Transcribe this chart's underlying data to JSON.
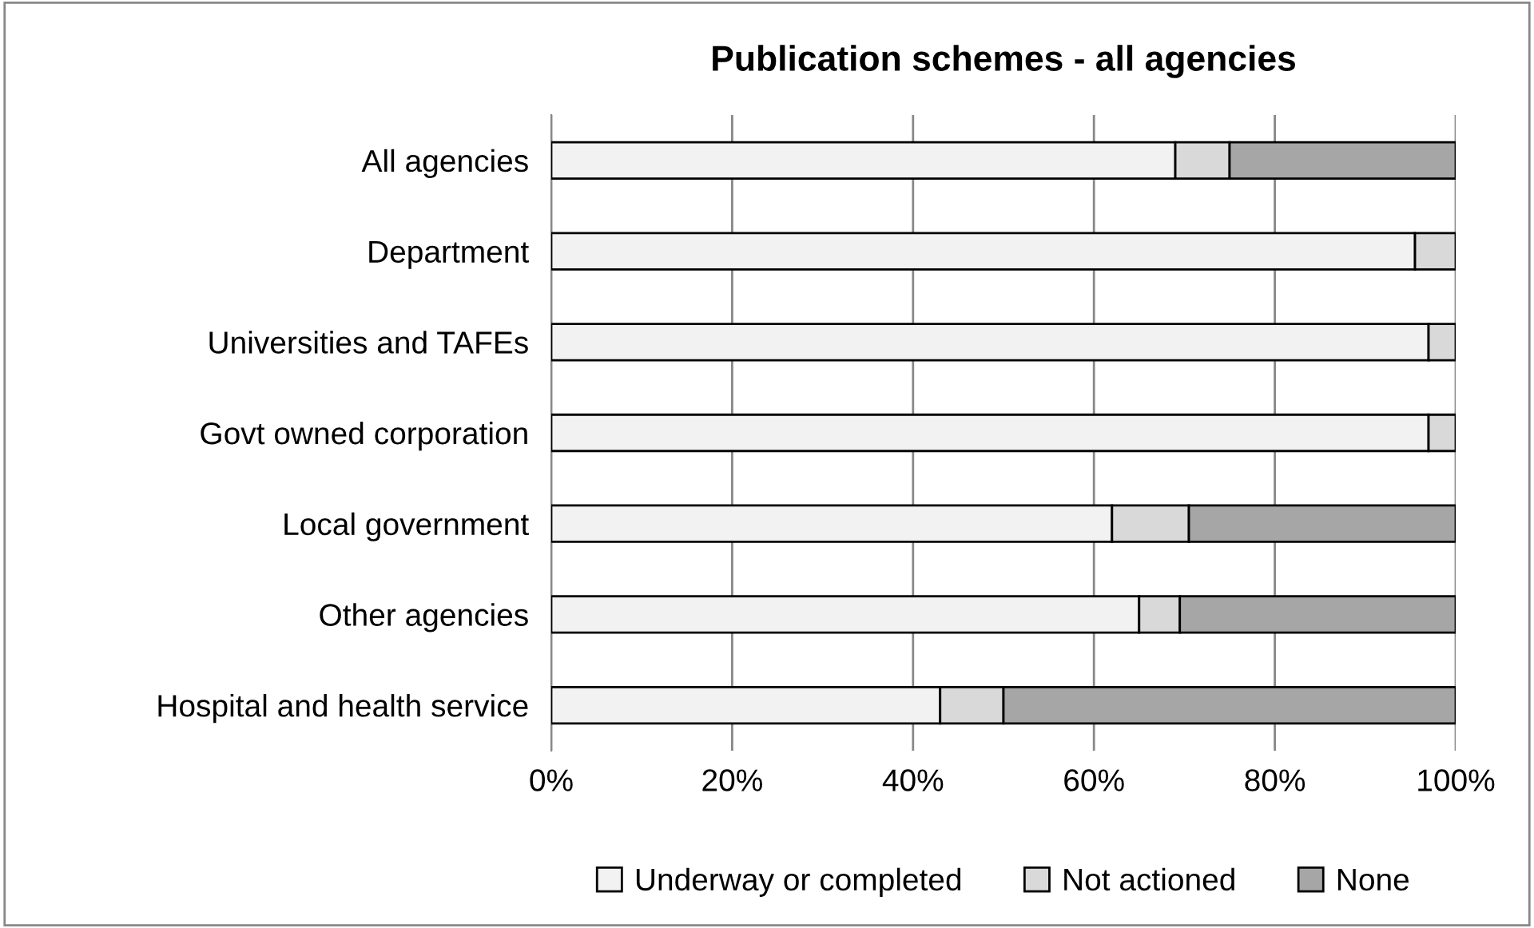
{
  "chart_data": {
    "type": "bar",
    "orientation": "horizontal",
    "stacked": true,
    "title": "Publication schemes - all agencies",
    "categories": [
      "All agencies",
      "Department",
      "Universities and TAFEs",
      "Govt owned corporation",
      "Local government",
      "Other agencies",
      "Hospital and health service"
    ],
    "series": [
      {
        "name": "Underway or completed",
        "color": "#f2f2f2",
        "values": [
          69,
          95.5,
          97,
          97,
          62,
          65,
          43
        ]
      },
      {
        "name": "Not actioned",
        "color": "#d9d9d9",
        "values": [
          6,
          4.5,
          3,
          3,
          8.5,
          4.5,
          7
        ]
      },
      {
        "name": "None",
        "color": "#a6a6a6",
        "values": [
          25,
          null,
          null,
          null,
          29.5,
          30.5,
          50
        ]
      }
    ],
    "xlim": [
      0,
      100
    ],
    "xticks": [
      {
        "value": 0,
        "label": "0%"
      },
      {
        "value": 20,
        "label": "20%"
      },
      {
        "value": 40,
        "label": "40%"
      },
      {
        "value": 60,
        "label": "60%"
      },
      {
        "value": 80,
        "label": "80%"
      },
      {
        "value": 100,
        "label": "100%"
      }
    ],
    "grid": "x",
    "legend": "bottom"
  }
}
